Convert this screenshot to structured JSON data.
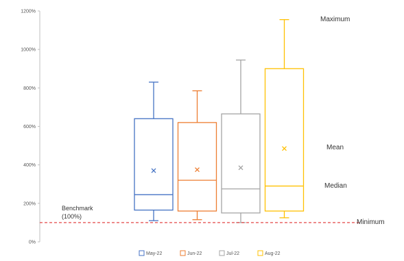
{
  "chart_data": {
    "type": "box",
    "title": "",
    "xlabel": "",
    "ylabel": "",
    "ylim": [
      0,
      1200
    ],
    "y_tick_values": [
      0,
      200,
      400,
      600,
      800,
      1000,
      1200
    ],
    "y_tick_labels": [
      "0%",
      "200%",
      "400%",
      "600%",
      "800%",
      "1000%",
      "1200%"
    ],
    "grid": false,
    "legend_position": "bottom",
    "series": [
      {
        "name": "May-22",
        "color": "#4472C4",
        "min": 110,
        "q1": 165,
        "median": 245,
        "q3": 640,
        "max": 830,
        "mean": 370
      },
      {
        "name": "Jun-22",
        "color": "#ED7D31",
        "min": 115,
        "q1": 160,
        "median": 320,
        "q3": 620,
        "max": 785,
        "mean": 375
      },
      {
        "name": "Jul-22",
        "color": "#A5A5A5",
        "min": 100,
        "q1": 150,
        "median": 275,
        "q3": 665,
        "max": 945,
        "mean": 385
      },
      {
        "name": "Aug-22",
        "color": "#FFC000",
        "min": 125,
        "q1": 160,
        "median": 290,
        "q3": 900,
        "max": 1155,
        "mean": 485
      }
    ],
    "benchmark": {
      "value": 100,
      "label_line1": "Benchmark",
      "label_line2": "(100%)",
      "color": "#E03030"
    },
    "annotations": {
      "maximum": "Maximum",
      "mean": "Mean",
      "median": "Median",
      "minimum": "Minimum"
    }
  }
}
